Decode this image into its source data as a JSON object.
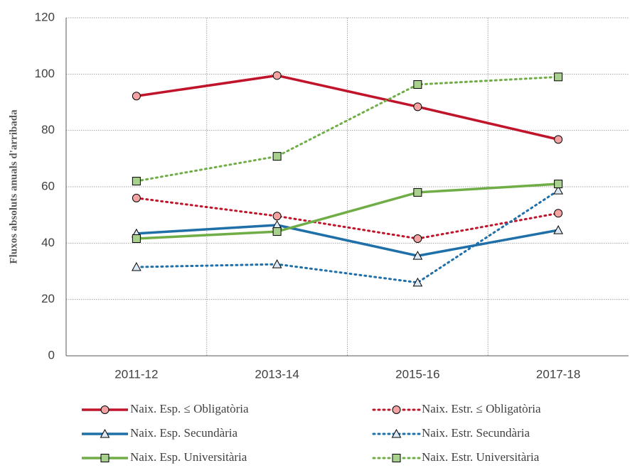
{
  "chart_data": {
    "type": "line",
    "y_label": "Fluxos absoluts anuals d'arribada",
    "categories": [
      "2011-12",
      "2013-14",
      "2015-16",
      "2017-18"
    ],
    "series": [
      {
        "name": "Naix. Esp. ≤ Obligatòria",
        "color": "#c0142a",
        "marker_fill": "#f4a3a3",
        "marker": "circle",
        "dotted": false,
        "values": [
          92.2,
          99.5,
          88.4,
          76.8
        ]
      },
      {
        "name": "Naix. Estr. ≤ Obligatòria",
        "color": "#c0142a",
        "marker_fill": "#f4a3a3",
        "marker": "circle",
        "dotted": true,
        "values": [
          56.0,
          49.6,
          41.6,
          50.6
        ]
      },
      {
        "name": "Naix. Esp. Secundària",
        "color": "#1f6fa8",
        "marker_fill": "#dce9f5",
        "marker": "triangle",
        "dotted": false,
        "values": [
          43.4,
          46.4,
          35.5,
          44.6
        ]
      },
      {
        "name": "Naix. Estr. Secundària",
        "color": "#1f6fa8",
        "marker_fill": "#dce9f5",
        "marker": "triangle",
        "dotted": true,
        "values": [
          31.5,
          32.5,
          26.0,
          58.7
        ]
      },
      {
        "name": "Naix. Esp. Universitària",
        "color": "#70ad47",
        "marker_fill": "#a9d18e",
        "marker": "square",
        "dotted": false,
        "values": [
          41.6,
          44.1,
          58.0,
          61.0
        ]
      },
      {
        "name": "Naix. Estr. Universitària",
        "color": "#70ad47",
        "marker_fill": "#a9d18e",
        "marker": "square",
        "dotted": true,
        "values": [
          62.0,
          70.8,
          96.3,
          99.0
        ]
      }
    ],
    "ylim": [
      0,
      120
    ],
    "yticks": [
      0,
      20,
      40,
      60,
      80,
      100,
      120
    ],
    "grid": true
  }
}
